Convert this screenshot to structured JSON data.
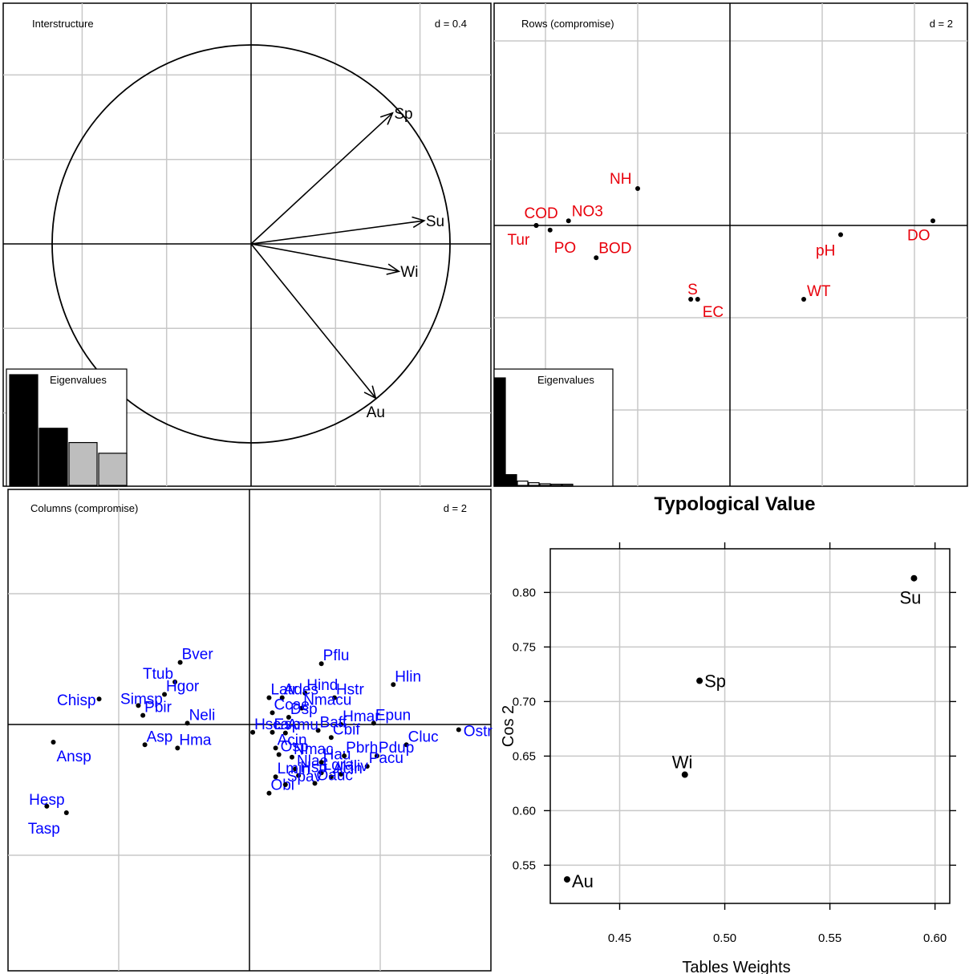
{
  "chart_data": [
    {
      "type": "scatter",
      "id": "interstructure",
      "title": "Interstructure",
      "scale_label": "d = 0.4",
      "grid": true,
      "axis_step": 0.4,
      "arrows": [
        {
          "label": "Sp",
          "x": 0.67,
          "y": 0.62
        },
        {
          "label": "Su",
          "x": 0.82,
          "y": 0.11
        },
        {
          "label": "Wi",
          "x": 0.7,
          "y": -0.13
        },
        {
          "label": "Au",
          "x": 0.59,
          "y": -0.73
        }
      ],
      "inset": {
        "title": "Eigenvalues",
        "values": [
          3.1,
          1.6,
          1.2,
          0.9
        ],
        "highlighted": 2
      }
    },
    {
      "type": "scatter",
      "id": "rows",
      "title": "Rows (compromise)",
      "scale_label": "d = 2",
      "grid": true,
      "axis_step": 2,
      "color": "#e8000b",
      "points": [
        {
          "label": "NH",
          "x": -2.0,
          "y": 0.8
        },
        {
          "label": "COD",
          "x": -4.2,
          "y": 0.0
        },
        {
          "label": "NO3",
          "x": -3.5,
          "y": 0.1
        },
        {
          "label": "Tur",
          "x": -4.2,
          "y": 0.0
        },
        {
          "label": "PO",
          "x": -3.9,
          "y": -0.1
        },
        {
          "label": "BOD",
          "x": -2.9,
          "y": -0.7
        },
        {
          "label": "pH",
          "x": 2.4,
          "y": -0.2
        },
        {
          "label": "DO",
          "x": 4.4,
          "y": 0.1
        },
        {
          "label": "S",
          "x": -0.85,
          "y": -1.6
        },
        {
          "label": "EC",
          "x": -0.7,
          "y": -1.6
        },
        {
          "label": "WT",
          "x": 1.6,
          "y": -1.6
        }
      ],
      "inset": {
        "title": "Eigenvalues",
        "values": [
          100,
          10,
          4,
          2.5,
          1.5,
          0.8,
          0.4
        ],
        "highlighted": 2
      }
    },
    {
      "type": "scatter",
      "id": "columns",
      "title": "Columns (compromise)",
      "scale_label": "d = 2",
      "grid": true,
      "axis_step": 2,
      "color": "#0000ff",
      "points": [
        {
          "label": "Pflu",
          "x": 1.1,
          "y": 0.93
        },
        {
          "label": "Hlin",
          "x": 2.2,
          "y": 0.61
        },
        {
          "label": "Bver",
          "x": -1.06,
          "y": 0.95
        },
        {
          "label": "Ttub",
          "x": -1.14,
          "y": 0.65
        },
        {
          "label": "Hgor",
          "x": -1.3,
          "y": 0.46
        },
        {
          "label": "Simsp",
          "x": -1.7,
          "y": 0.29
        },
        {
          "label": "Chisp",
          "x": -2.3,
          "y": 0.39
        },
        {
          "label": "Pbir",
          "x": -1.63,
          "y": 0.14
        },
        {
          "label": "Neli",
          "x": -0.95,
          "y": 0.02
        },
        {
          "label": "Asp",
          "x": -1.6,
          "y": -0.31
        },
        {
          "label": "Hma",
          "x": -1.1,
          "y": -0.36
        },
        {
          "label": "Ansp",
          "x": -3.0,
          "y": -0.27
        },
        {
          "label": "Hesp",
          "x": -3.1,
          "y": -1.25
        },
        {
          "label": "Tasp",
          "x": -2.8,
          "y": -1.35
        },
        {
          "label": "Ostr",
          "x": 3.2,
          "y": -0.08
        },
        {
          "label": "Cluc",
          "x": 2.4,
          "y": -0.31
        },
        {
          "label": "Epun",
          "x": 1.9,
          "y": 0.02
        },
        {
          "label": "Pdup",
          "x": 1.95,
          "y": -0.48
        },
        {
          "label": "Pacu",
          "x": 1.8,
          "y": -0.64
        },
        {
          "label": "Hliv",
          "x": 1.4,
          "y": -0.76
        },
        {
          "label": "Acin",
          "x": 1.25,
          "y": -0.8
        },
        {
          "label": "Lgra",
          "x": 1.1,
          "y": -0.74
        },
        {
          "label": "Oauc",
          "x": 1.0,
          "y": -0.9
        },
        {
          "label": "Hstr",
          "x": 1.3,
          "y": 0.41
        },
        {
          "label": "Hmar",
          "x": 1.4,
          "y": 0.0
        },
        {
          "label": "Hind",
          "x": 0.85,
          "y": 0.48
        },
        {
          "label": "Nmacu",
          "x": 0.8,
          "y": 0.25
        },
        {
          "label": "Baff",
          "x": 1.05,
          "y": -0.09
        },
        {
          "label": "Cbif",
          "x": 1.25,
          "y": -0.2
        },
        {
          "label": "Ades",
          "x": 0.5,
          "y": 0.41
        },
        {
          "label": "Latr",
          "x": 0.3,
          "y": 0.41
        },
        {
          "label": "Ccae",
          "x": 0.35,
          "y": 0.18
        },
        {
          "label": "Dsp",
          "x": 0.6,
          "y": 0.11
        },
        {
          "label": "Esp",
          "x": 0.35,
          "y": -0.12
        },
        {
          "label": "Hsca",
          "x": 0.05,
          "y": -0.12
        },
        {
          "label": "Amu",
          "x": 0.55,
          "y": -0.13
        },
        {
          "label": "Acin",
          "x": 0.4,
          "y": -0.36
        },
        {
          "label": "Nmac",
          "x": 0.65,
          "y": -0.5
        },
        {
          "label": "Osp",
          "x": 0.45,
          "y": -0.46
        },
        {
          "label": "Nlae",
          "x": 0.7,
          "y": -0.68
        },
        {
          "label": "Hau",
          "x": 1.1,
          "y": -0.58
        },
        {
          "label": "Pbrh",
          "x": 1.45,
          "y": -0.48
        },
        {
          "label": "Hsp",
          "x": 0.75,
          "y": -0.78
        },
        {
          "label": "Lmin",
          "x": 0.4,
          "y": -0.8
        },
        {
          "label": "Obi",
          "x": 0.3,
          "y": -1.05
        },
        {
          "label": "Spav",
          "x": 0.55,
          "y": -0.92
        }
      ]
    },
    {
      "type": "scatter",
      "id": "typological",
      "title": "Typological Value",
      "xlabel": "Tables Weights",
      "ylabel": "Cos 2",
      "xlim": [
        0.417,
        0.607
      ],
      "ylim": [
        0.515,
        0.84
      ],
      "x_ticks": [
        "0.45",
        "0.50",
        "0.55",
        "0.60"
      ],
      "y_ticks": [
        "0.55",
        "0.60",
        "0.65",
        "0.70",
        "0.75",
        "0.80"
      ],
      "grid": true,
      "points": [
        {
          "label": "Su",
          "x": 0.59,
          "y": 0.813
        },
        {
          "label": "Sp",
          "x": 0.488,
          "y": 0.719
        },
        {
          "label": "Wi",
          "x": 0.481,
          "y": 0.633
        },
        {
          "label": "Au",
          "x": 0.425,
          "y": 0.537
        }
      ]
    }
  ]
}
